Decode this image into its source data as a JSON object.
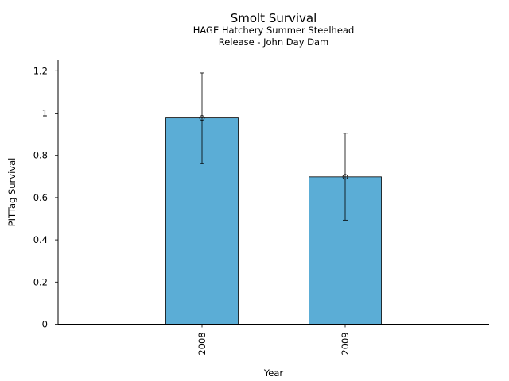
{
  "chart_data": {
    "type": "bar",
    "title": "Smolt Survival",
    "subtitle_lines": [
      "HAGE Hatchery Summer Steelhead",
      "Release - John Day Dam"
    ],
    "xlabel": "Year",
    "ylabel": "PITTag Survival",
    "categories": [
      "2008",
      "2009"
    ],
    "values": [
      0.977,
      0.698
    ],
    "error_lower": [
      0.762,
      0.493
    ],
    "error_upper": [
      1.19,
      0.905
    ],
    "ylim": [
      0,
      1.25
    ],
    "yticks": [
      0,
      0.2,
      0.4,
      0.6,
      0.8,
      1,
      1.2
    ],
    "ytick_labels": [
      "0",
      "0.2",
      "0.4",
      "0.6",
      "0.8",
      "1",
      "1.2"
    ],
    "grid": false,
    "bar_color": "#5badd6"
  }
}
